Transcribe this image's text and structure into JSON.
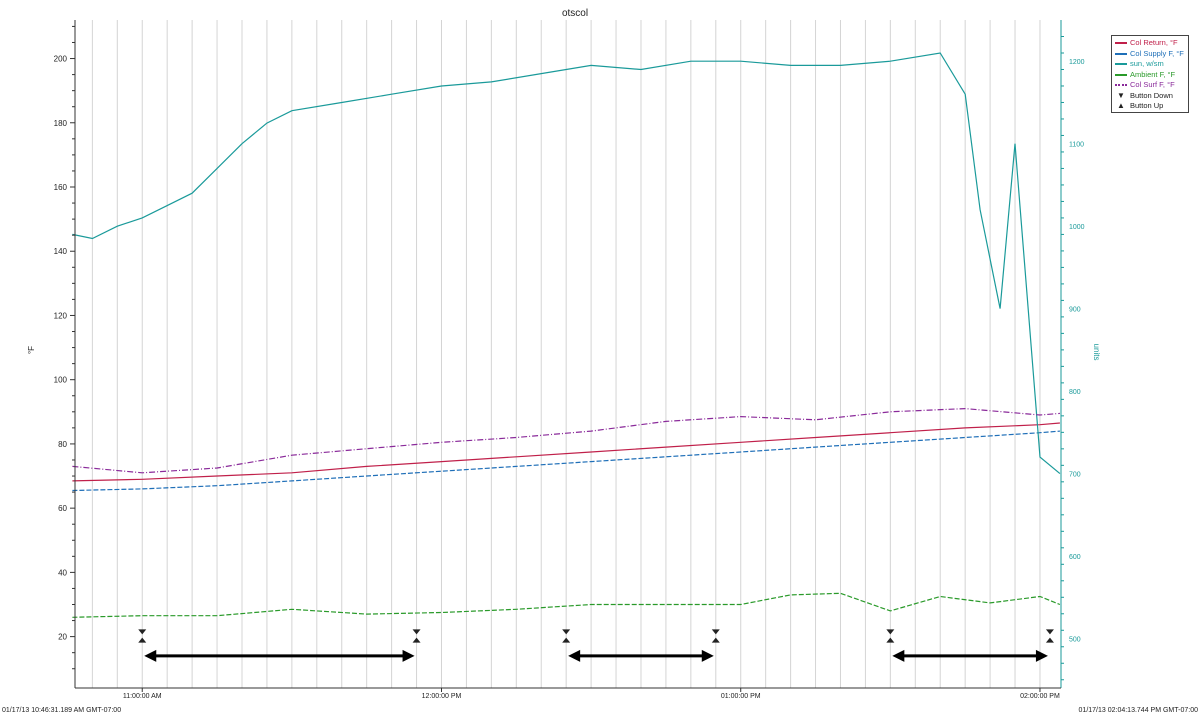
{
  "chart_data": {
    "type": "line",
    "title": "otscol",
    "ylabel": "°F",
    "ylabel_right": "units",
    "ylim": [
      4,
      212
    ],
    "ylim_right": [
      440,
      1250
    ],
    "yticks_major": [
      20,
      40,
      60,
      80,
      100,
      120,
      140,
      160,
      180,
      200
    ],
    "yticks_right_major": [
      500,
      600,
      700,
      800,
      900,
      1000,
      1100,
      1200
    ],
    "xlim": [
      "10:46:31",
      "14:04:13"
    ],
    "x_tick_labels": [
      "11:00:00 AM",
      "12:00:00 PM",
      "01:00:00 PM",
      "02:00:00 PM"
    ],
    "x_start_label": "01/17/13 10:46:31.189 AM GMT-07:00",
    "x_end_label": "01/17/13 02:04:13.744 PM GMT-07:00",
    "grid": true,
    "legend_position": "top-right-outside",
    "series": [
      {
        "name": "Col Return, °F",
        "color": "#c0204a",
        "style": "solid",
        "axis": "left",
        "x": [
          "10:46",
          "11:00",
          "11:15",
          "11:30",
          "11:45",
          "12:00",
          "12:15",
          "12:30",
          "12:45",
          "13:00",
          "13:15",
          "13:30",
          "13:45",
          "14:00",
          "14:04"
        ],
        "values": [
          68.5,
          69,
          70,
          71,
          73,
          74.5,
          76,
          77.5,
          79,
          80.5,
          82,
          83.5,
          85,
          86,
          86.5
        ]
      },
      {
        "name": "Col Supply F, °F",
        "color": "#1f6fb8",
        "style": "dashed",
        "axis": "left",
        "x": [
          "10:46",
          "11:00",
          "11:15",
          "11:30",
          "11:45",
          "12:00",
          "12:15",
          "12:30",
          "12:45",
          "13:00",
          "13:15",
          "13:30",
          "13:45",
          "14:00",
          "14:04"
        ],
        "values": [
          65.5,
          66,
          67,
          68.5,
          70,
          71.5,
          73,
          74.5,
          76,
          77.5,
          79,
          80.5,
          82,
          83.5,
          84
        ]
      },
      {
        "name": "sun, w/sm",
        "color": "#1a9a9a",
        "style": "solid",
        "axis": "right",
        "x": [
          "10:46",
          "10:50",
          "10:55",
          "11:00",
          "11:05",
          "11:10",
          "11:15",
          "11:20",
          "11:25",
          "11:30",
          "11:40",
          "11:50",
          "12:00",
          "12:10",
          "12:20",
          "12:30",
          "12:40",
          "12:50",
          "13:00",
          "13:10",
          "13:20",
          "13:30",
          "13:40",
          "13:45",
          "13:48",
          "13:52",
          "13:55",
          "14:00",
          "14:04"
        ],
        "values": [
          990,
          985,
          1000,
          1010,
          1025,
          1040,
          1070,
          1100,
          1125,
          1140,
          1150,
          1160,
          1170,
          1175,
          1185,
          1195,
          1190,
          1200,
          1200,
          1195,
          1195,
          1200,
          1210,
          1160,
          1020,
          900,
          1100,
          720,
          700
        ]
      },
      {
        "name": "Ambient F, °F",
        "color": "#2a9a2a",
        "style": "dashed",
        "axis": "left",
        "x": [
          "10:46",
          "11:00",
          "11:15",
          "11:30",
          "11:45",
          "12:00",
          "12:15",
          "12:30",
          "12:45",
          "13:00",
          "13:10",
          "13:20",
          "13:30",
          "13:40",
          "13:50",
          "14:00",
          "14:04"
        ],
        "values": [
          26,
          26.5,
          26.5,
          28.5,
          27,
          27.5,
          28.5,
          30,
          30,
          30,
          33,
          33.5,
          28,
          32.5,
          30.5,
          32.5,
          30
        ]
      },
      {
        "name": "Col Surf F, °F",
        "color": "#8a2a9a",
        "style": "dashdot",
        "axis": "left",
        "x": [
          "10:46",
          "11:00",
          "11:15",
          "11:30",
          "11:45",
          "12:00",
          "12:15",
          "12:30",
          "12:45",
          "13:00",
          "13:15",
          "13:30",
          "13:45",
          "14:00",
          "14:04"
        ],
        "values": [
          73,
          71,
          72.5,
          76.5,
          78.5,
          80.5,
          82,
          84,
          87,
          88.5,
          87.5,
          90,
          91,
          89,
          89.5
        ]
      },
      {
        "name": "Button Down",
        "marker": "triangle-down",
        "color": "#222222",
        "axis": "left",
        "x": [
          "11:00",
          "11:55",
          "12:25",
          "12:55",
          "13:30",
          "14:02"
        ],
        "values": [
          21,
          21,
          21,
          21,
          21,
          21
        ]
      },
      {
        "name": "Button Up",
        "marker": "triangle-up",
        "color": "#222222",
        "axis": "left",
        "x": [
          "11:00",
          "11:55",
          "12:25",
          "12:55",
          "13:30",
          "14:02"
        ],
        "values": [
          20,
          20,
          20,
          20,
          20,
          20
        ]
      }
    ]
  }
}
